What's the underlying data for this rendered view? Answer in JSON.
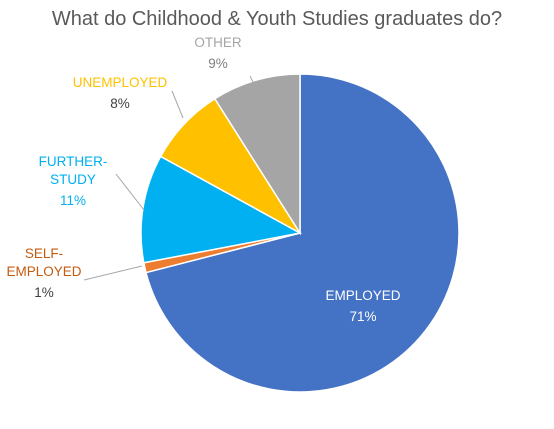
{
  "chart_data": {
    "type": "pie",
    "title": "What do Childhood & Youth Studies graduates do?",
    "start": "12 o'clock",
    "direction": "clockwise",
    "slices": [
      {
        "lines": [
          "EMPLOYED"
        ],
        "value": 71,
        "value_label": "71%",
        "color": "#4472C4",
        "label_color": "#FFFFFF",
        "value_color": "#FFFFFF"
      },
      {
        "lines": [
          "SELF-",
          "EMPLOYED"
        ],
        "value": 1,
        "value_label": "1%",
        "color": "#ED7D31",
        "label_color": "#C55A11",
        "value_color": "#404040"
      },
      {
        "lines": [
          "FURTHER-",
          "STUDY"
        ],
        "value": 11,
        "value_label": "11%",
        "color": "#00B0F0",
        "label_color": "#00B0F0",
        "value_color": "#00B0F0"
      },
      {
        "lines": [
          "UNEMPLOYED"
        ],
        "value": 8,
        "value_label": "8%",
        "color": "#FFC000",
        "label_color": "#FFC000",
        "value_color": "#404040"
      },
      {
        "lines": [
          "OTHER"
        ],
        "value": 9,
        "value_label": "9%",
        "color": "#A5A5A5",
        "label_color": "#A5A5A5",
        "value_color": "#7F7F7F"
      }
    ]
  }
}
